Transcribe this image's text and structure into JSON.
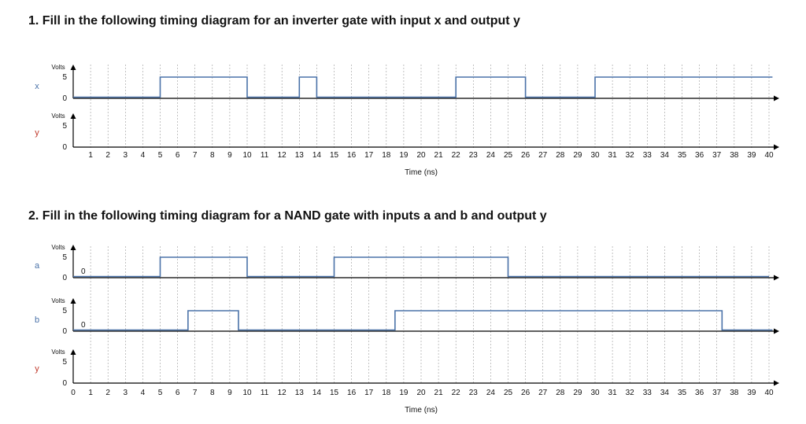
{
  "q1": {
    "title": "1. Fill in the following timing diagram for an inverter gate with input x and output y",
    "signals": [
      {
        "name": "x",
        "volts_label": "Volts",
        "high_label": "5",
        "low_label": "0",
        "waveform": [
          [
            0,
            0
          ],
          [
            5,
            1
          ],
          [
            10,
            0
          ],
          [
            13,
            1
          ],
          [
            14,
            0
          ],
          [
            22,
            1
          ],
          [
            26,
            0
          ],
          [
            30,
            1
          ],
          [
            40.2,
            1
          ]
        ]
      },
      {
        "name": "y",
        "volts_label": "Volts",
        "high_label": "5",
        "low_label": "0",
        "waveform": []
      }
    ],
    "ticks": [
      "1",
      "2",
      "3",
      "4",
      "5",
      "6",
      "7",
      "8",
      "9",
      "10",
      "11",
      "12",
      "13",
      "14",
      "15",
      "16",
      "17",
      "18",
      "19",
      "20",
      "21",
      "22",
      "23",
      "24",
      "25",
      "26",
      "27",
      "28",
      "29",
      "30",
      "31",
      "32",
      "33",
      "34",
      "35",
      "36",
      "37",
      "38",
      "39",
      "40"
    ],
    "xlabel": "Time (ns)"
  },
  "q2": {
    "title": "2. Fill in the following timing diagram for a NAND gate with inputs a and b and output y",
    "signals": [
      {
        "name": "a",
        "volts_label": "Volts",
        "high_label": "5",
        "low_label": "0",
        "annotation": "0",
        "waveform": [
          [
            0,
            0
          ],
          [
            5,
            1
          ],
          [
            10,
            0
          ],
          [
            15,
            1
          ],
          [
            25,
            0
          ],
          [
            40,
            0
          ]
        ]
      },
      {
        "name": "b",
        "volts_label": "Volts",
        "high_label": "5",
        "low_label": "0",
        "annotation": "0",
        "waveform": [
          [
            0,
            0
          ],
          [
            6.6,
            1
          ],
          [
            9.5,
            0
          ],
          [
            18.5,
            1
          ],
          [
            37.3,
            0
          ],
          [
            40.2,
            0
          ]
        ]
      },
      {
        "name": "y",
        "volts_label": "Volts",
        "high_label": "5",
        "low_label": "0",
        "waveform": []
      }
    ],
    "ticks": [
      "0",
      "1",
      "2",
      "3",
      "4",
      "5",
      "6",
      "7",
      "8",
      "9",
      "10",
      "11",
      "12",
      "13",
      "14",
      "15",
      "16",
      "17",
      "18",
      "19",
      "20",
      "21",
      "22",
      "23",
      "24",
      "25",
      "26",
      "27",
      "28",
      "29",
      "30",
      "31",
      "32",
      "33",
      "34",
      "35",
      "36",
      "37",
      "38",
      "39",
      "40"
    ],
    "xlabel": "Time (ns)"
  },
  "colors": {
    "wave": "#4a72a8",
    "label": "#4a72a8",
    "output_label": "#c0392b",
    "grid": "#9a9a9a",
    "axis": "#000000"
  }
}
